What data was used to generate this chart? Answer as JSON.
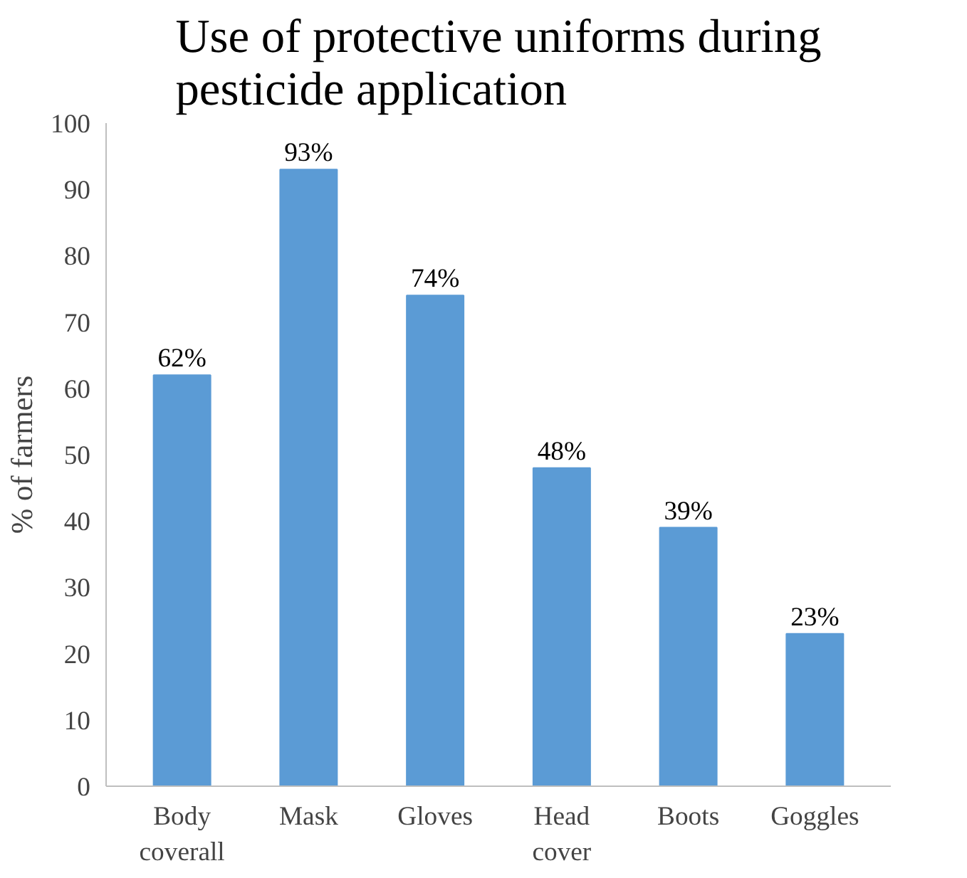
{
  "chart_data": {
    "type": "bar",
    "title": "Use of protective uniforms during pesticide application",
    "ylabel": "% of farmers",
    "categories": [
      "Body coverall",
      "Mask",
      "Gloves",
      "Head cover",
      "Boots",
      "Goggles"
    ],
    "values": [
      62,
      93,
      74,
      48,
      39,
      23
    ],
    "value_labels": [
      "62%",
      "93%",
      "74%",
      "48%",
      "39%",
      "23%"
    ],
    "color": "#5b9bd5",
    "ylim": [
      0,
      100
    ],
    "yticks": [
      0,
      10,
      20,
      30,
      40,
      50,
      60,
      70,
      80,
      90,
      100
    ],
    "grid": false
  }
}
